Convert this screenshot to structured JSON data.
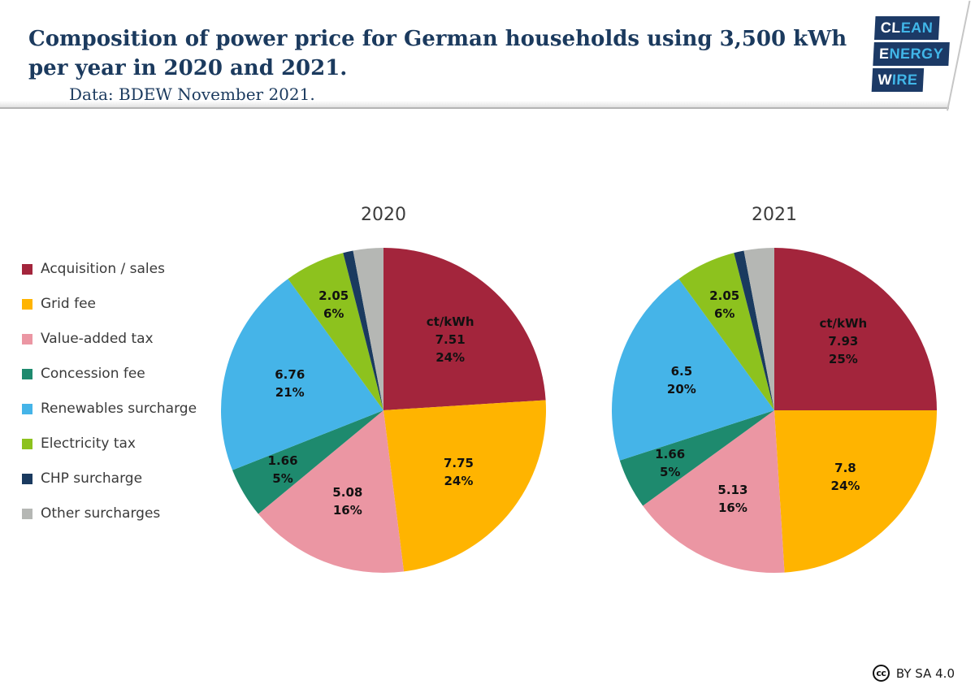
{
  "header": {
    "title": "Composition of power price for German households using 3,500 kWh per year in 2020 and 2021.",
    "subtitle": "Data: BDEW November 2021.",
    "title_color": "#1b3a5e"
  },
  "logo": {
    "lines": [
      {
        "white": "CL",
        "cyan": "EAN"
      },
      {
        "white": "E",
        "cyan": "NERGY"
      },
      {
        "white": "W",
        "cyan": "IRE"
      }
    ],
    "box_color": "#1c3a66",
    "accent_cyan": "#41b6e8"
  },
  "legend": {
    "items": [
      {
        "label": "Acquisition / sales",
        "color": "#a3253c"
      },
      {
        "label": "Grid fee",
        "color": "#ffb400"
      },
      {
        "label": "Value-added tax",
        "color": "#eb96a3"
      },
      {
        "label": "Concession fee",
        "color": "#1e8a6e"
      },
      {
        "label": "Renewables surcharge",
        "color": "#45b4e8"
      },
      {
        "label": "Electricity tax",
        "color": "#8dc21e"
      },
      {
        "label": "CHP surcharge",
        "color": "#1a3a5f"
      },
      {
        "label": "Other surcharges",
        "color": "#b5b7b4"
      }
    ]
  },
  "chart_data": [
    {
      "type": "pie",
      "title": "2020",
      "unit": "ct/kWh",
      "start_angle_deg": 0,
      "direction": "clockwise",
      "slices": [
        {
          "label": "Acquisition / sales",
          "value_ct_kwh": 7.51,
          "percent": 24,
          "display": [
            "ct/kWh",
            "7.51",
            "24%"
          ],
          "color": "#a3253c"
        },
        {
          "label": "Grid fee",
          "value_ct_kwh": 7.75,
          "percent": 24,
          "display": [
            "7.75",
            "24%"
          ],
          "color": "#ffb400"
        },
        {
          "label": "Value-added tax",
          "value_ct_kwh": 5.08,
          "percent": 16,
          "display": [
            "5.08",
            "16%"
          ],
          "color": "#eb96a3"
        },
        {
          "label": "Concession fee",
          "value_ct_kwh": 1.66,
          "percent": 5,
          "display": [
            "1.66",
            "5%"
          ],
          "color": "#1e8a6e"
        },
        {
          "label": "Renewables surcharge",
          "value_ct_kwh": 6.76,
          "percent": 21,
          "display": [
            "6.76",
            "21%"
          ],
          "color": "#45b4e8"
        },
        {
          "label": "Electricity tax",
          "value_ct_kwh": 2.05,
          "percent": 6,
          "display": [
            "2.05",
            "6%"
          ],
          "color": "#8dc21e"
        },
        {
          "label": "CHP surcharge",
          "value_ct_kwh": null,
          "percent": 1,
          "display": [],
          "color": "#1a3a5f"
        },
        {
          "label": "Other surcharges",
          "value_ct_kwh": null,
          "percent": 3,
          "display": [],
          "color": "#b5b7b4"
        }
      ]
    },
    {
      "type": "pie",
      "title": "2021",
      "unit": "ct/kWh",
      "start_angle_deg": 0,
      "direction": "clockwise",
      "slices": [
        {
          "label": "Acquisition / sales",
          "value_ct_kwh": 7.93,
          "percent": 25,
          "display": [
            "ct/kWh",
            "7.93",
            "25%"
          ],
          "color": "#a3253c"
        },
        {
          "label": "Grid fee",
          "value_ct_kwh": 7.8,
          "percent": 24,
          "display": [
            "7.8",
            "24%"
          ],
          "color": "#ffb400"
        },
        {
          "label": "Value-added tax",
          "value_ct_kwh": 5.13,
          "percent": 16,
          "display": [
            "5.13",
            "16%"
          ],
          "color": "#eb96a3"
        },
        {
          "label": "Concession fee",
          "value_ct_kwh": 1.66,
          "percent": 5,
          "display": [
            "1.66",
            "5%"
          ],
          "color": "#1e8a6e"
        },
        {
          "label": "Renewables surcharge",
          "value_ct_kwh": 6.5,
          "percent": 20,
          "display": [
            "6.5",
            "20%"
          ],
          "color": "#45b4e8"
        },
        {
          "label": "Electricity tax",
          "value_ct_kwh": 2.05,
          "percent": 6,
          "display": [
            "2.05",
            "6%"
          ],
          "color": "#8dc21e"
        },
        {
          "label": "CHP surcharge",
          "value_ct_kwh": null,
          "percent": 1,
          "display": [],
          "color": "#1a3a5f"
        },
        {
          "label": "Other surcharges",
          "value_ct_kwh": null,
          "percent": 3,
          "display": [],
          "color": "#b5b7b4"
        }
      ]
    }
  ],
  "footer": {
    "cc_label": "cc",
    "license": "BY SA 4.0"
  }
}
